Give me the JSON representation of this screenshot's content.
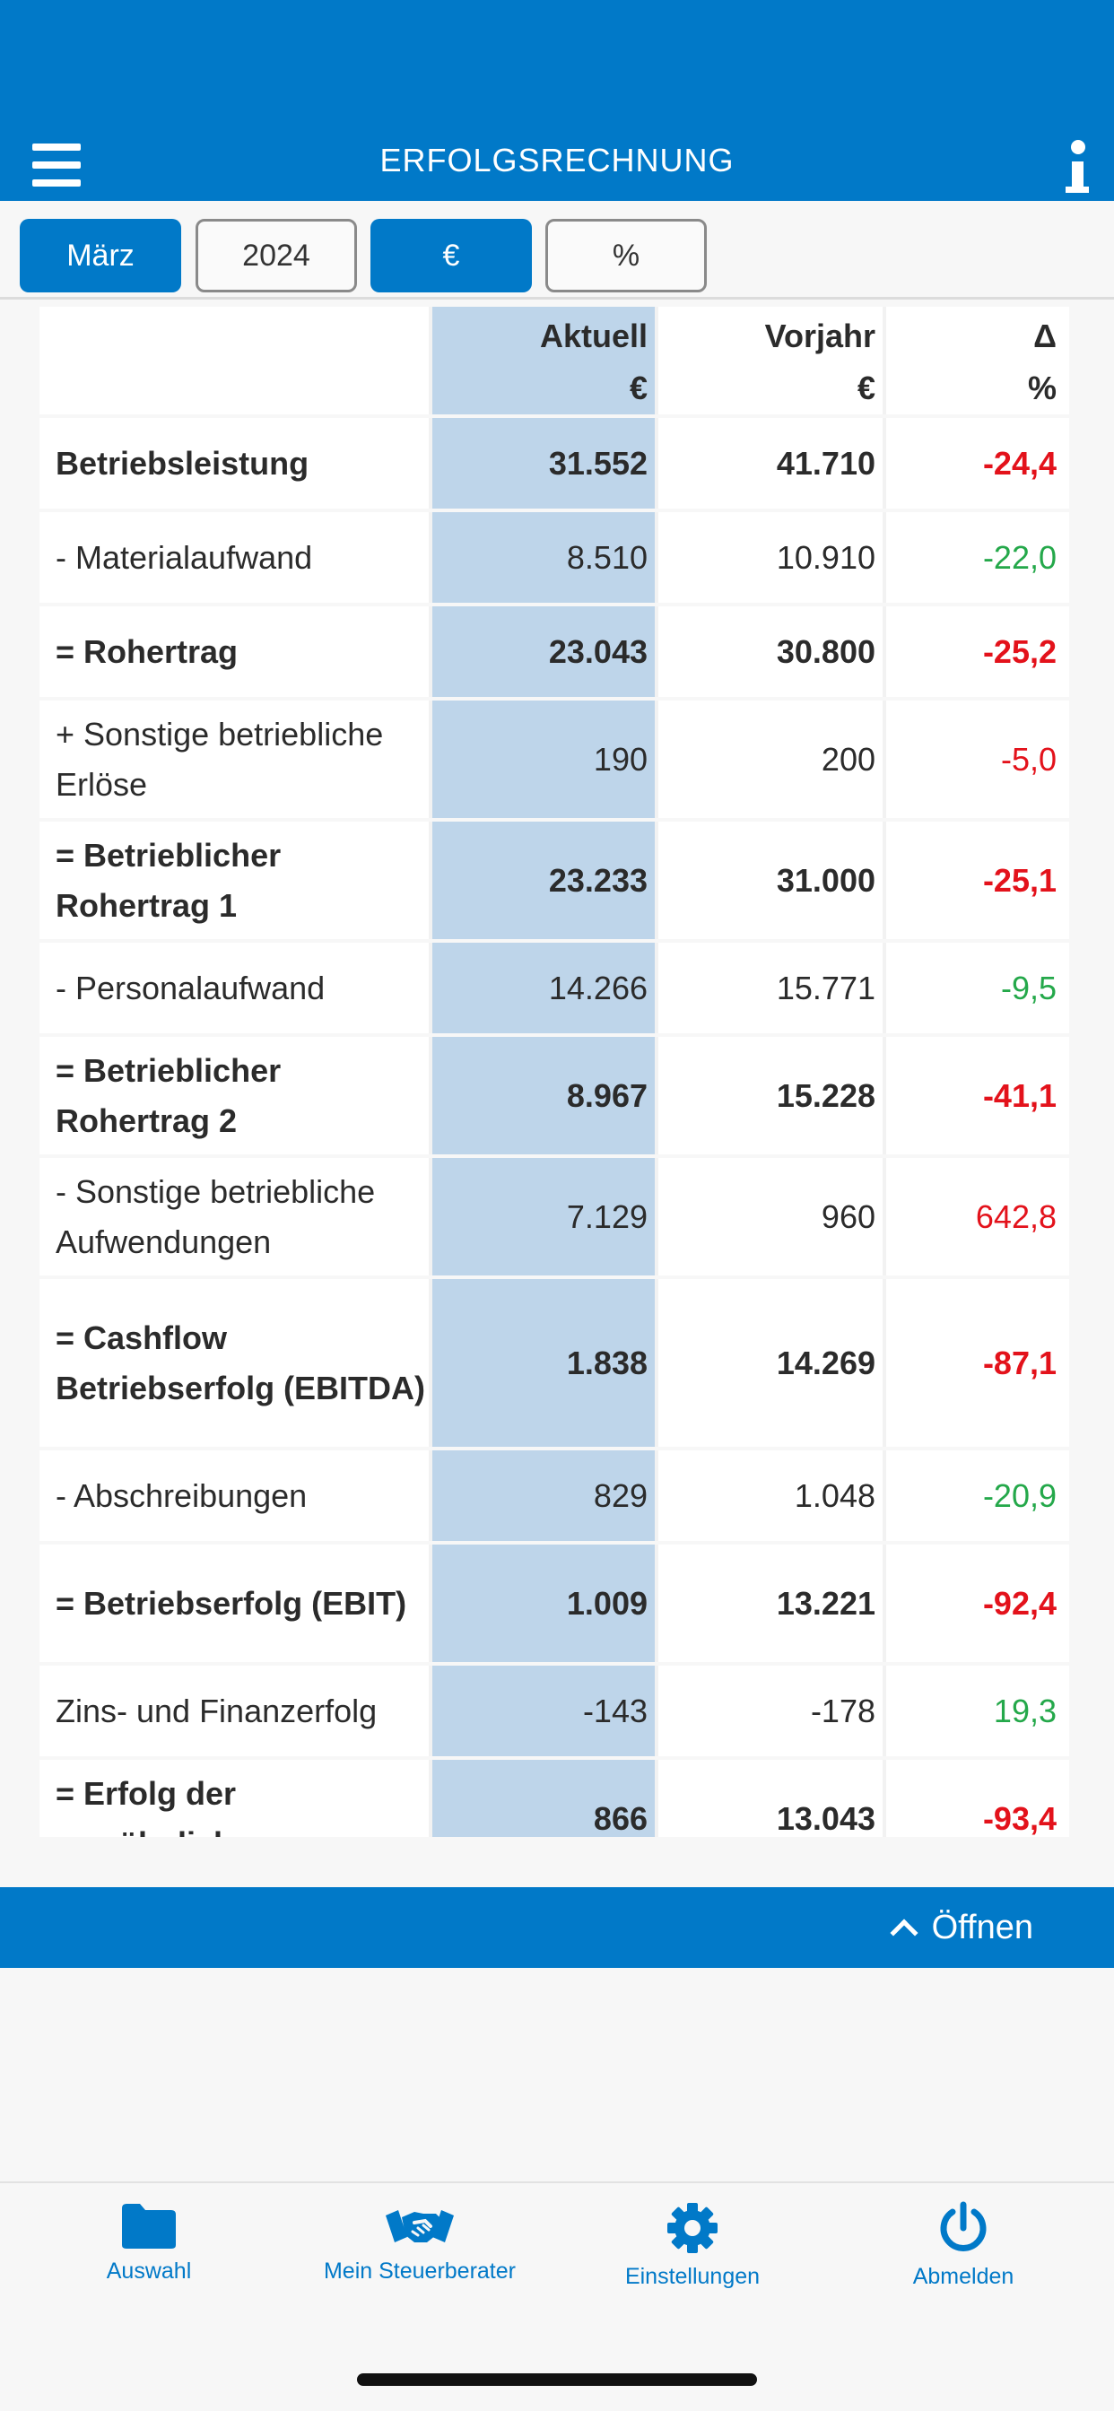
{
  "header": {
    "title": "ERFOLGSRECHNUNG"
  },
  "filters": {
    "month": "März",
    "year": "2024",
    "currency": "€",
    "percent": "%"
  },
  "table": {
    "columns": [
      {
        "title": "",
        "unit": ""
      },
      {
        "title": "Aktuell",
        "unit": "€"
      },
      {
        "title": "Vorjahr",
        "unit": "€"
      },
      {
        "title": "Δ",
        "unit": "%"
      }
    ],
    "rows": [
      {
        "label": "Betriebsleistung",
        "aktuell": "31.552",
        "vorjahr": "41.710",
        "delta": "-24,4"
      },
      {
        "label": "- Materialaufwand",
        "aktuell": "8.510",
        "vorjahr": "10.910",
        "delta": "-22,0"
      },
      {
        "label": "= Rohertrag",
        "aktuell": "23.043",
        "vorjahr": "30.800",
        "delta": "-25,2"
      },
      {
        "label": "+ Sonstige betriebliche Erlöse",
        "aktuell": "190",
        "vorjahr": "200",
        "delta": "-5,0"
      },
      {
        "label": "= Betrieblicher Rohertrag 1",
        "aktuell": "23.233",
        "vorjahr": "31.000",
        "delta": "-25,1"
      },
      {
        "label": "- Personalaufwand",
        "aktuell": "14.266",
        "vorjahr": "15.771",
        "delta": "-9,5"
      },
      {
        "label": "= Betrieblicher Rohertrag 2",
        "aktuell": "8.967",
        "vorjahr": "15.228",
        "delta": "-41,1"
      },
      {
        "label": "- Sonstige betriebliche Aufwendungen",
        "aktuell": "7.129",
        "vorjahr": "960",
        "delta": "642,8"
      },
      {
        "label": "= Cashflow Betriebserfolg (EBITDA)",
        "aktuell": "1.838",
        "vorjahr": "14.269",
        "delta": "-87,1"
      },
      {
        "label": "- Abschreibungen",
        "aktuell": "829",
        "vorjahr": "1.048",
        "delta": "-20,9"
      },
      {
        "label": "= Betriebserfolg (EBIT)",
        "aktuell": "1.009",
        "vorjahr": "13.221",
        "delta": "-92,4"
      },
      {
        "label": "Zins- und Finanzerfolg",
        "aktuell": "-143",
        "vorjahr": "-178",
        "delta": "19,3"
      },
      {
        "label": "= Erfolg der gewöhnlichen",
        "aktuell": "866",
        "vorjahr": "13.043",
        "delta": "-93,4"
      }
    ]
  },
  "panel": {
    "open_label": "Öffnen"
  },
  "tabbar": {
    "items": [
      {
        "label": "Auswahl",
        "icon": "folder-icon"
      },
      {
        "label": "Mein Steuerberater",
        "icon": "handshake-icon"
      },
      {
        "label": "Einstellungen",
        "icon": "gear-icon"
      },
      {
        "label": "Abmelden",
        "icon": "power-icon"
      }
    ]
  },
  "colors": {
    "primary": "#0179c8",
    "negative": "#e3121b",
    "positive": "#24a84a",
    "current_column": "#bed5ea"
  }
}
